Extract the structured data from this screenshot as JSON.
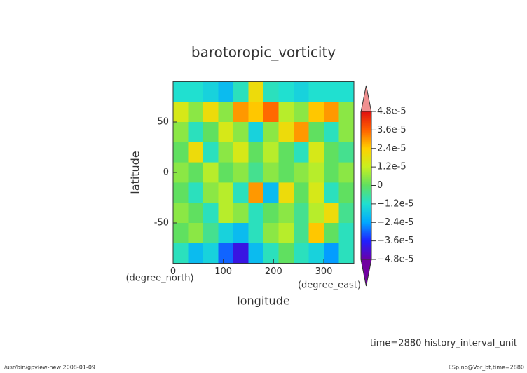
{
  "chart_data": {
    "type": "heatmap",
    "title": "barotoropic_vorticity",
    "xlabel": "longitude",
    "ylabel": "latitude",
    "xunit": "(degree_east)",
    "yunit": "(degree_north)",
    "note": "time=2880 history_interval_unit",
    "footer_left": "/usr/bin/gpview-new  2008-01-09",
    "footer_right": "ESp.nc@Vor_bt,time=2880",
    "xlim": [
      0,
      360
    ],
    "ylim": [
      -90,
      90
    ],
    "xticks": [
      0,
      100,
      200,
      300
    ],
    "yticks": [
      50,
      0,
      -50
    ],
    "x": [
      15,
      45,
      75,
      105,
      135,
      165,
      195,
      225,
      255,
      285,
      315,
      345
    ],
    "y": [
      80,
      60,
      40,
      20,
      0,
      -20,
      -40,
      -60,
      -80
    ],
    "z": [
      [
        -1.2e-05,
        -1.2e-05,
        -1.5e-05,
        -2e-05,
        -1e-05,
        2e-05,
        -1e-05,
        -1.2e-05,
        -1.5e-05,
        -1.2e-05,
        -1.2e-05,
        -1.2e-05
      ],
      [
        1.5e-05,
        5e-06,
        2e-05,
        5e-06,
        3e-05,
        2.5e-05,
        3.5e-05,
        1e-05,
        5e-06,
        2.5e-05,
        3e-05,
        5e-06
      ],
      [
        5e-06,
        -1e-05,
        0,
        1.5e-05,
        5e-06,
        -1.5e-05,
        5e-06,
        2e-05,
        3e-05,
        0,
        -1e-05,
        5e-06
      ],
      [
        0,
        2e-05,
        -1e-05,
        5e-06,
        1.5e-05,
        0,
        1e-05,
        0,
        -1e-05,
        1.5e-05,
        0,
        -5e-06
      ],
      [
        5e-06,
        0,
        1e-05,
        0,
        5e-06,
        -5e-06,
        5e-06,
        0,
        5e-06,
        1e-05,
        0,
        5e-06
      ],
      [
        0,
        -1e-05,
        5e-06,
        1e-05,
        -1e-05,
        3e-05,
        -2e-05,
        2e-05,
        0,
        1.5e-05,
        -1e-05,
        0
      ],
      [
        5e-06,
        0,
        -1e-05,
        1e-05,
        5e-06,
        -1e-05,
        0,
        5e-06,
        -5e-06,
        1e-05,
        2e-05,
        -5e-06
      ],
      [
        0,
        5e-06,
        -5e-06,
        -1.5e-05,
        -2e-05,
        -1e-05,
        5e-06,
        1e-05,
        -5e-06,
        2.5e-05,
        0,
        -1e-05
      ],
      [
        -1e-05,
        -2e-05,
        -1.5e-05,
        -3e-05,
        -4e-05,
        -2e-05,
        -1e-05,
        0,
        -1e-05,
        -1.5e-05,
        -2.5e-05,
        -1e-05
      ]
    ],
    "clim": [
      -4.8e-05,
      4.8e-05
    ],
    "cticks": [
      {
        "value": 4.8e-05,
        "label": "4.8e-5"
      },
      {
        "value": 3.6e-05,
        "label": "3.6e-5"
      },
      {
        "value": 2.4e-05,
        "label": "2.4e-5"
      },
      {
        "value": 1.2e-05,
        "label": "1.2e-5"
      },
      0,
      {
        "value": -1.2e-05,
        "label": "−1.2e-5"
      },
      {
        "value": -2.4e-05,
        "label": "−2.4e-5"
      },
      {
        "value": -3.6e-05,
        "label": "−3.6e-5"
      },
      {
        "value": -4.8e-05,
        "label": "−4.8e-5"
      }
    ],
    "colors": [
      "#6a00a8",
      "#2020ff",
      "#00a8ff",
      "#20e0d0",
      "#60e060",
      "#c8f020",
      "#ffd000",
      "#ff6000",
      "#e01010"
    ]
  }
}
